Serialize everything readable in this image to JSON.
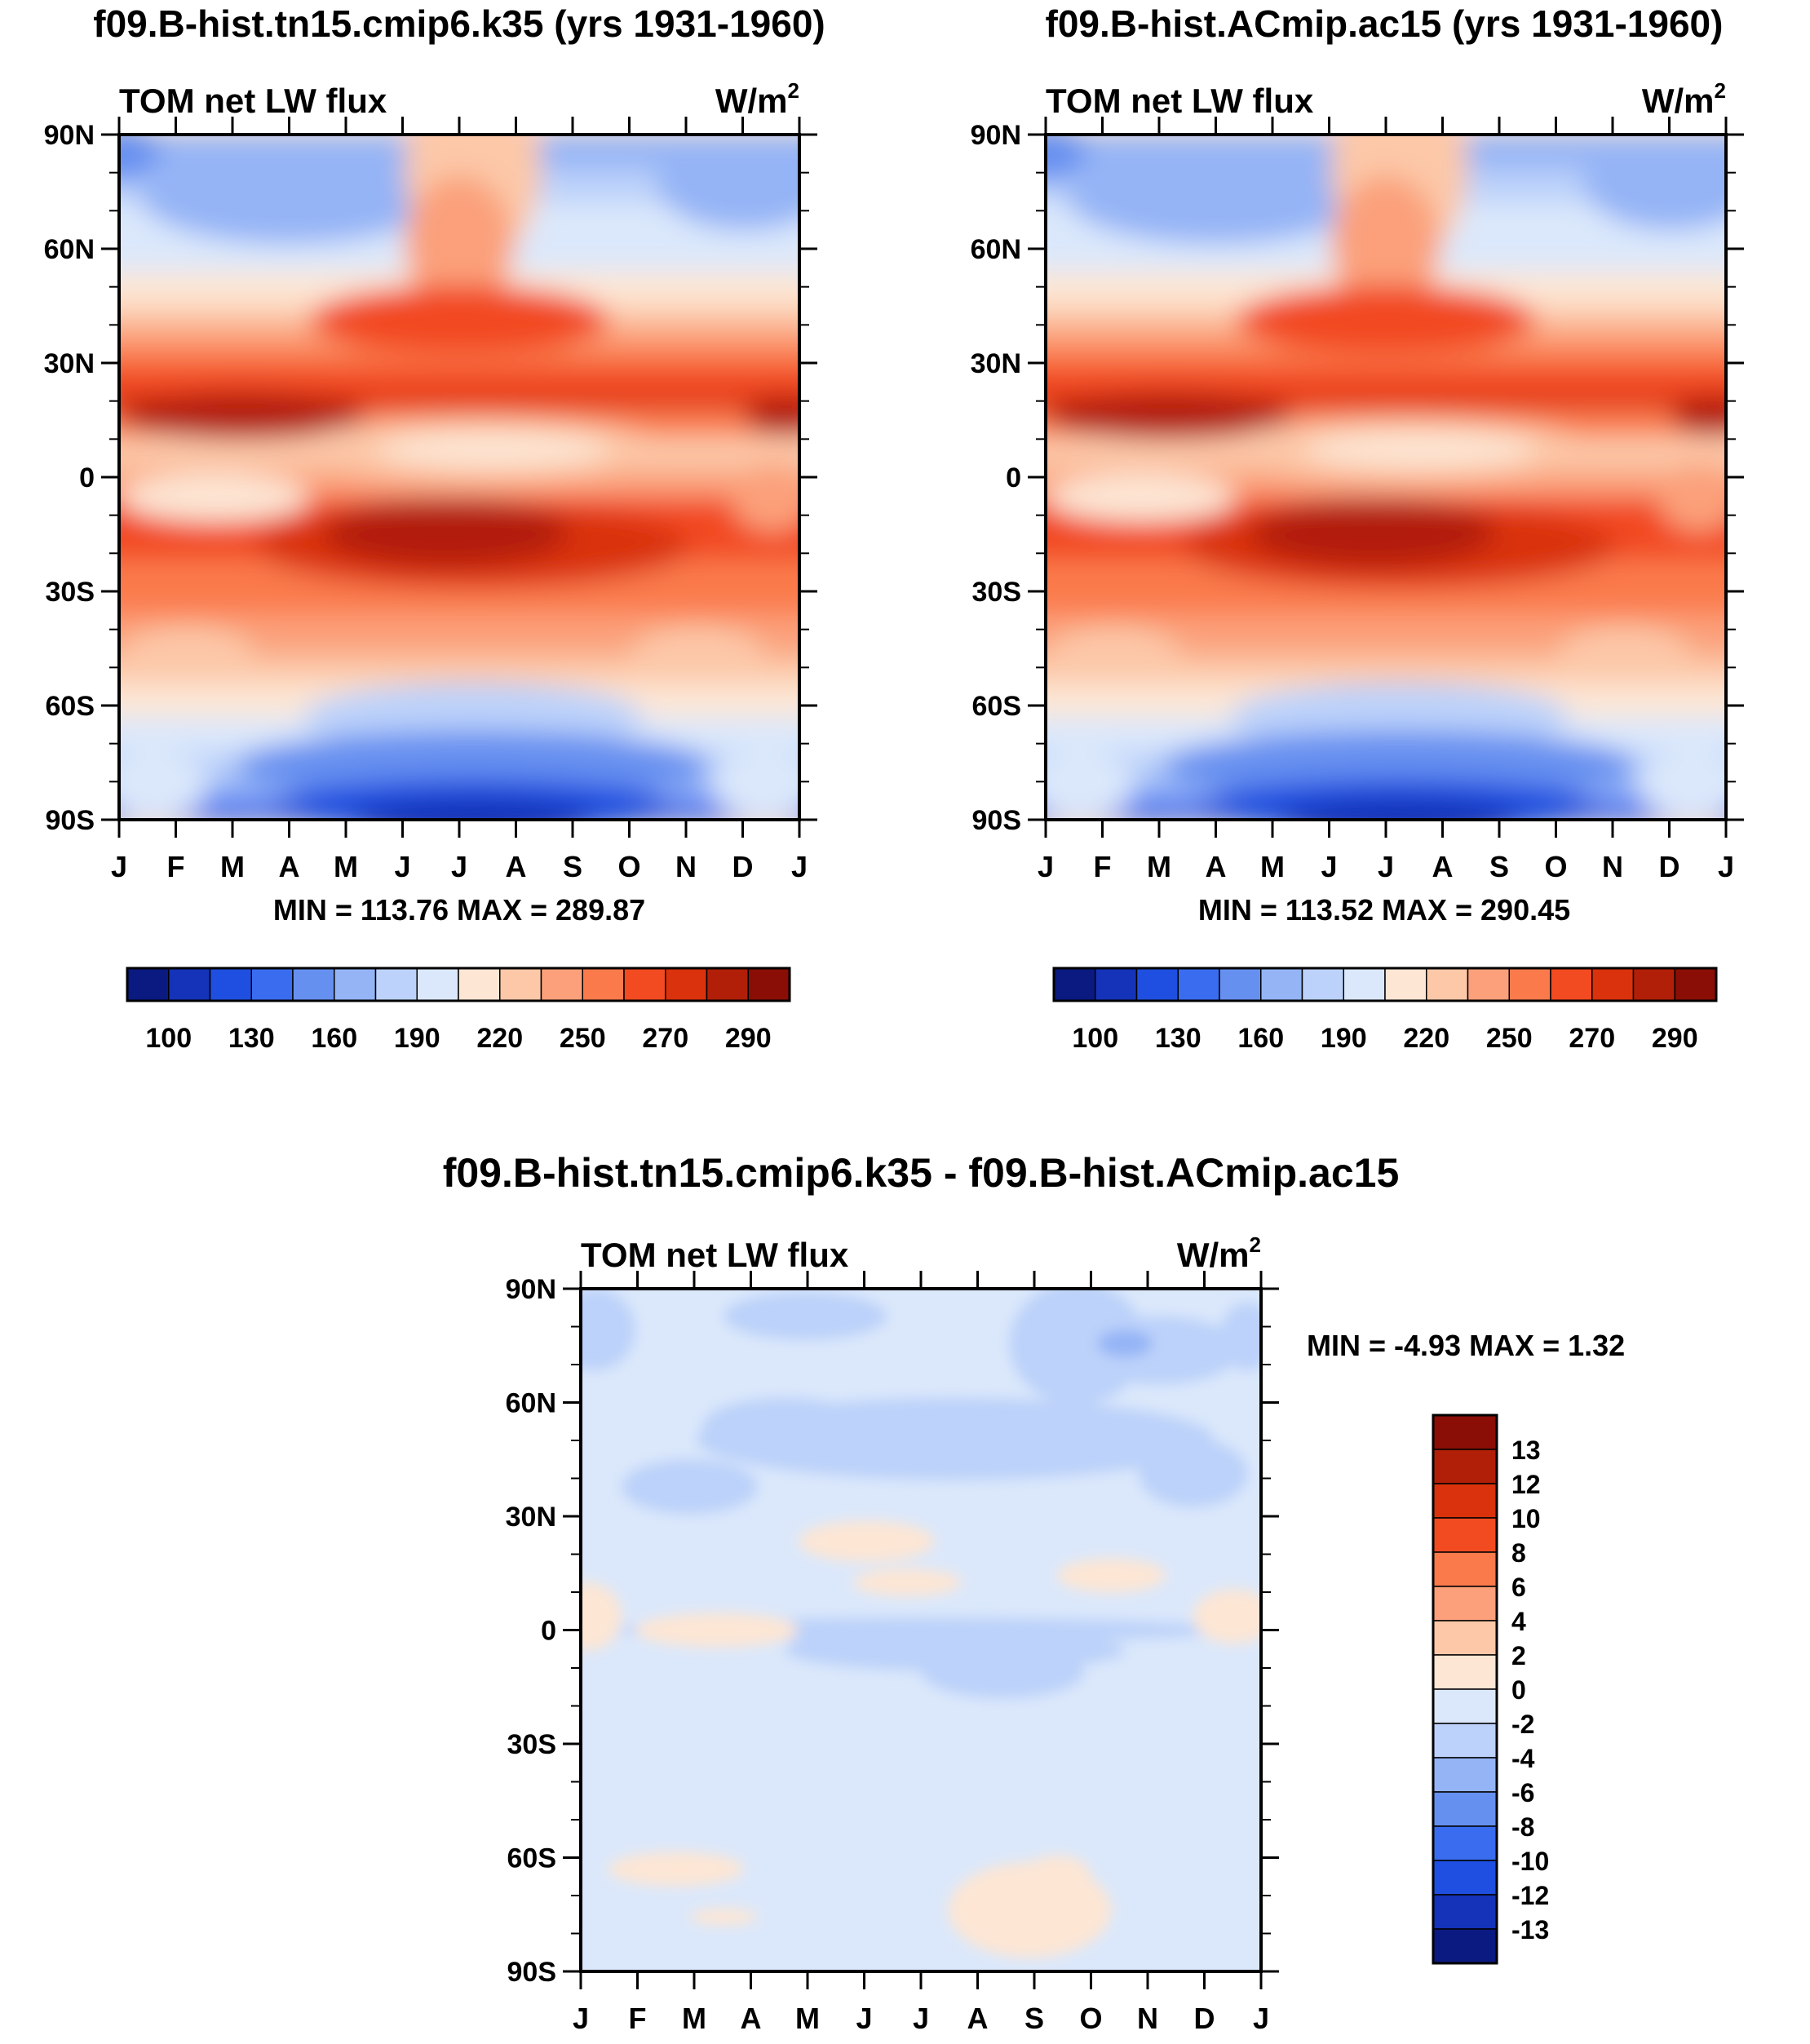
{
  "panels": [
    {
      "title": "f09.B-hist.tn15.cmip6.k35 (yrs 1931-1960)",
      "left_label": "TOM net LW flux",
      "units_base": "W/m",
      "units_sup": "2",
      "stats": "MIN = 113.76 MAX = 289.87",
      "field": "absolute"
    },
    {
      "title": "f09.B-hist.ACmip.ac15 (yrs 1931-1960)",
      "left_label": "TOM net LW flux",
      "units_base": "W/m",
      "units_sup": "2",
      "stats": "MIN = 113.52 MAX = 290.45",
      "field": "absolute"
    },
    {
      "title": "f09.B-hist.tn15.cmip6.k35 - f09.B-hist.ACmip.ac15",
      "left_label": "TOM net LW flux",
      "units_base": "W/m",
      "units_sup": "2",
      "stats": "MIN =  -4.93 MAX =   1.32",
      "field": "difference"
    }
  ],
  "x_ticks": [
    "J",
    "F",
    "M",
    "A",
    "M",
    "J",
    "J",
    "A",
    "S",
    "O",
    "N",
    "D",
    "J"
  ],
  "y_ticks": [
    "90N",
    "60N",
    "30N",
    "0",
    "30S",
    "60S",
    "90S"
  ],
  "abs_colorbar": {
    "colors": [
      "#0a1a80",
      "#1433b8",
      "#1f4fe0",
      "#3a6cf0",
      "#6690f0",
      "#94b4f6",
      "#bcd2fa",
      "#dbe8fb",
      "#fde6d4",
      "#fcc8a8",
      "#fba07a",
      "#fa7a4c",
      "#f24a21",
      "#d9320c",
      "#b21f08",
      "#8a0d06"
    ],
    "labels": [
      "100",
      "130",
      "160",
      "190",
      "220",
      "250",
      "270",
      "290"
    ]
  },
  "diff_colorbar": {
    "colors": [
      "#0a1a80",
      "#1433b8",
      "#1f4fe0",
      "#3a6cf0",
      "#6690f0",
      "#94b4f6",
      "#bcd2fa",
      "#dbe8fb",
      "#fde6d4",
      "#fcc8a8",
      "#fba07a",
      "#fa7a4c",
      "#f24a21",
      "#d9320c",
      "#b21f08",
      "#8a0d06"
    ],
    "labels": [
      "-13",
      "-12",
      "-10",
      "-8",
      "-6",
      "-4",
      "-2",
      "0",
      "2",
      "4",
      "6",
      "8",
      "10",
      "12",
      "13"
    ]
  },
  "chart_data": [
    {
      "type": "heatmap",
      "title": "f09.B-hist.tn15.cmip6.k35 (yrs 1931-1960)",
      "variable": "TOM net LW flux",
      "units": "W/m2",
      "x": [
        "J",
        "F",
        "M",
        "A",
        "M",
        "J",
        "J",
        "A",
        "S",
        "O",
        "N",
        "D",
        "J"
      ],
      "y": [
        "90N",
        "60N",
        "30N",
        "0",
        "30S",
        "60S",
        "90S"
      ],
      "min": 113.76,
      "max": 289.87,
      "levels": [
        100,
        130,
        160,
        190,
        220,
        250,
        270,
        290
      ]
    },
    {
      "type": "heatmap",
      "title": "f09.B-hist.ACmip.ac15 (yrs 1931-1960)",
      "variable": "TOM net LW flux",
      "units": "W/m2",
      "x": [
        "J",
        "F",
        "M",
        "A",
        "M",
        "J",
        "J",
        "A",
        "S",
        "O",
        "N",
        "D",
        "J"
      ],
      "y": [
        "90N",
        "60N",
        "30N",
        "0",
        "30S",
        "60S",
        "90S"
      ],
      "min": 113.52,
      "max": 290.45,
      "levels": [
        100,
        130,
        160,
        190,
        220,
        250,
        270,
        290
      ]
    },
    {
      "type": "heatmap",
      "title": "f09.B-hist.tn15.cmip6.k35 - f09.B-hist.ACmip.ac15",
      "variable": "TOM net LW flux",
      "units": "W/m2",
      "x": [
        "J",
        "F",
        "M",
        "A",
        "M",
        "J",
        "J",
        "A",
        "S",
        "O",
        "N",
        "D",
        "J"
      ],
      "y": [
        "90N",
        "60N",
        "30N",
        "0",
        "30S",
        "60S",
        "90S"
      ],
      "min": -4.93,
      "max": 1.32,
      "levels": [
        -13,
        -12,
        -10,
        -8,
        -6,
        -4,
        -2,
        0,
        2,
        4,
        6,
        8,
        10,
        12,
        13
      ]
    }
  ]
}
